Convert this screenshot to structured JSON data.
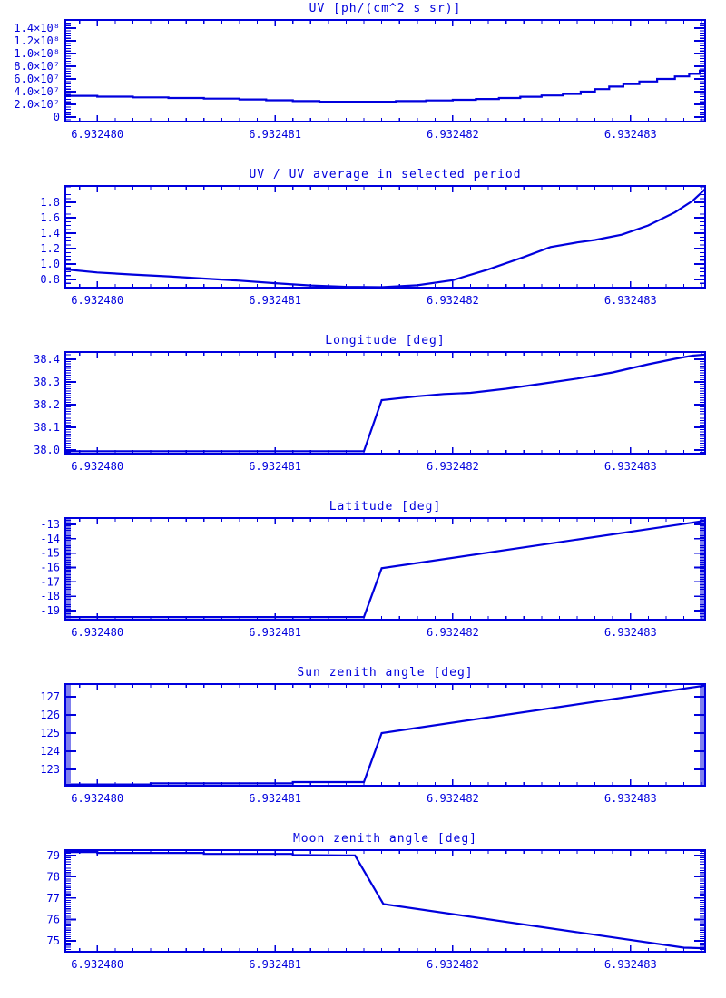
{
  "page": {
    "background": "#ffffff",
    "accent": "#0000dd"
  },
  "chart_data": [
    {
      "type": "line",
      "title": "UV [ph/(cm^2 s sr)]",
      "line_style": "steps",
      "xlabel": "",
      "ylabel": "",
      "x": {
        "lim": [
          6.93247982,
          6.93248342
        ],
        "minor_step": 1e-07,
        "ticks": [
          {
            "v": 6.93248,
            "label": "6.932480"
          },
          {
            "v": 6.932481,
            "label": "6.932481"
          },
          {
            "v": 6.932482,
            "label": "6.932482"
          },
          {
            "v": 6.932483,
            "label": "6.932483"
          }
        ]
      },
      "y": {
        "lim": [
          -7100000,
          152900000
        ],
        "minor_step": 4000000,
        "ticks": [
          {
            "v": 0,
            "label": "0"
          },
          {
            "v": 20000000,
            "label": "2.0×10⁷"
          },
          {
            "v": 40000000,
            "label": "4.0×10⁷"
          },
          {
            "v": 60000000,
            "label": "6.0×10⁷"
          },
          {
            "v": 80000000,
            "label": "8.0×10⁷"
          },
          {
            "v": 100000000,
            "label": "1.0×10⁸"
          },
          {
            "v": 120000000,
            "label": "1.2×10⁸"
          },
          {
            "v": 140000000,
            "label": "1.4×10⁸"
          }
        ]
      },
      "points": [
        [
          6.93247982,
          33500000
        ],
        [
          6.93248,
          32200000
        ],
        [
          6.9324802,
          31000000
        ],
        [
          6.9324804,
          30000000
        ],
        [
          6.9324806,
          29000000
        ],
        [
          6.9324808,
          27800000
        ],
        [
          6.93248095,
          26500000
        ],
        [
          6.9324811,
          25200000
        ],
        [
          6.93248125,
          24200000
        ],
        [
          6.93248168,
          25200000
        ],
        [
          6.93248185,
          26200000
        ],
        [
          6.932482,
          27200000
        ],
        [
          6.93248213,
          28500000
        ],
        [
          6.93248226,
          30000000
        ],
        [
          6.93248238,
          32000000
        ],
        [
          6.9324825,
          34000000
        ],
        [
          6.93248262,
          36500000
        ],
        [
          6.93248272,
          40000000
        ],
        [
          6.9324828,
          44000000
        ],
        [
          6.93248288,
          48000000
        ],
        [
          6.93248296,
          52000000
        ],
        [
          6.93248305,
          56000000
        ],
        [
          6.93248315,
          60000000
        ],
        [
          6.93248325,
          64000000
        ],
        [
          6.93248333,
          68000000
        ],
        [
          6.93248339,
          73000000
        ],
        [
          6.93248342,
          73000000
        ]
      ]
    },
    {
      "type": "line",
      "title": "UV / UV average in selected period",
      "line_style": "line",
      "xlabel": "",
      "ylabel": "",
      "x": {
        "lim": [
          6.93247982,
          6.93248342
        ],
        "minor_step": 1e-07,
        "ticks": [
          {
            "v": 6.93248,
            "label": "6.932480"
          },
          {
            "v": 6.932481,
            "label": "6.932481"
          },
          {
            "v": 6.932482,
            "label": "6.932482"
          },
          {
            "v": 6.932483,
            "label": "6.932483"
          }
        ]
      },
      "y": {
        "lim": [
          0.694,
          2.012
        ],
        "minor_step": 0.05,
        "ticks": [
          {
            "v": 0.8,
            "label": "0.8"
          },
          {
            "v": 1.0,
            "label": "1.0"
          },
          {
            "v": 1.2,
            "label": "1.2"
          },
          {
            "v": 1.4,
            "label": "1.4"
          },
          {
            "v": 1.6,
            "label": "1.6"
          },
          {
            "v": 1.8,
            "label": "1.8"
          }
        ]
      },
      "points": [
        [
          6.93247982,
          0.93
        ],
        [
          6.93248,
          0.89
        ],
        [
          6.9324802,
          0.863
        ],
        [
          6.9324804,
          0.84
        ],
        [
          6.9324806,
          0.812
        ],
        [
          6.9324808,
          0.785
        ],
        [
          6.932481,
          0.752
        ],
        [
          6.9324812,
          0.722
        ],
        [
          6.9324814,
          0.705
        ],
        [
          6.9324816,
          0.7
        ],
        [
          6.9324818,
          0.725
        ],
        [
          6.932482,
          0.79
        ],
        [
          6.9324822,
          0.93
        ],
        [
          6.9324824,
          1.09
        ],
        [
          6.93248255,
          1.22
        ],
        [
          6.9324827,
          1.28
        ],
        [
          6.9324828,
          1.312
        ],
        [
          6.93248295,
          1.38
        ],
        [
          6.9324831,
          1.5
        ],
        [
          6.93248325,
          1.67
        ],
        [
          6.93248335,
          1.82
        ],
        [
          6.93248342,
          1.97
        ]
      ]
    },
    {
      "type": "line",
      "title": "Longitude [deg]",
      "line_style": "line",
      "xlabel": "",
      "ylabel": "",
      "x": {
        "lim": [
          6.93247982,
          6.93248342
        ],
        "minor_step": 1e-07,
        "ticks": [
          {
            "v": 6.93248,
            "label": "6.932480"
          },
          {
            "v": 6.932481,
            "label": "6.932481"
          },
          {
            "v": 6.932482,
            "label": "6.932482"
          },
          {
            "v": 6.932483,
            "label": "6.932483"
          }
        ]
      },
      "y": {
        "lim": [
          37.984,
          38.432
        ],
        "minor_step": 0.01,
        "ticks": [
          {
            "v": 38.0,
            "label": "38.0"
          },
          {
            "v": 38.1,
            "label": "38.1"
          },
          {
            "v": 38.2,
            "label": "38.2"
          },
          {
            "v": 38.3,
            "label": "38.3"
          },
          {
            "v": 38.4,
            "label": "38.4"
          }
        ]
      },
      "points": [
        [
          6.93247982,
          37.995
        ],
        [
          6.9324815,
          37.995
        ],
        [
          6.9324816,
          38.22
        ],
        [
          6.9324818,
          38.237
        ],
        [
          6.93248195,
          38.247
        ],
        [
          6.9324821,
          38.252
        ],
        [
          6.9324823,
          38.27
        ],
        [
          6.9324825,
          38.292
        ],
        [
          6.9324827,
          38.315
        ],
        [
          6.9324829,
          38.342
        ],
        [
          6.9324831,
          38.378
        ],
        [
          6.93248325,
          38.402
        ],
        [
          6.93248335,
          38.416
        ],
        [
          6.93248342,
          38.421
        ]
      ]
    },
    {
      "type": "line",
      "title": "Latitude [deg]",
      "line_style": "line",
      "xlabel": "",
      "ylabel": "",
      "x": {
        "lim": [
          6.93247982,
          6.93248342
        ],
        "minor_step": 1e-07,
        "ticks": [
          {
            "v": 6.93248,
            "label": "6.932480"
          },
          {
            "v": 6.932481,
            "label": "6.932481"
          },
          {
            "v": 6.932482,
            "label": "6.932482"
          },
          {
            "v": 6.932483,
            "label": "6.932483"
          }
        ]
      },
      "y": {
        "lim": [
          -19.63,
          -12.56
        ],
        "minor_step": 0.1,
        "ticks": [
          {
            "v": -19,
            "label": "-19"
          },
          {
            "v": -18,
            "label": "-18"
          },
          {
            "v": -17,
            "label": "-17"
          },
          {
            "v": -16,
            "label": "-16"
          },
          {
            "v": -15,
            "label": "-15"
          },
          {
            "v": -14,
            "label": "-14"
          },
          {
            "v": -13,
            "label": "-13"
          }
        ]
      },
      "points": [
        [
          6.93247982,
          -19.45
        ],
        [
          6.9324815,
          -19.45
        ],
        [
          6.9324816,
          -16.05
        ],
        [
          6.93248342,
          -12.75
        ]
      ]
    },
    {
      "type": "line",
      "title": "Sun zenith angle [deg]",
      "line_style": "line",
      "xlabel": "",
      "ylabel": "",
      "x": {
        "lim": [
          6.93247982,
          6.93248342
        ],
        "minor_step": 1e-07,
        "ticks": [
          {
            "v": 6.93248,
            "label": "6.932480"
          },
          {
            "v": 6.932481,
            "label": "6.932481"
          },
          {
            "v": 6.932482,
            "label": "6.932482"
          },
          {
            "v": 6.932483,
            "label": "6.932483"
          }
        ]
      },
      "y": {
        "lim": [
          122.1,
          127.7
        ],
        "minor_step": 0.1,
        "ticks": [
          {
            "v": 123,
            "label": "123"
          },
          {
            "v": 124,
            "label": "124"
          },
          {
            "v": 125,
            "label": "125"
          },
          {
            "v": 126,
            "label": "126"
          },
          {
            "v": 127,
            "label": "127"
          }
        ]
      },
      "points": [
        [
          6.93247982,
          122.17
        ],
        [
          6.9324803,
          122.17
        ],
        [
          6.9324803,
          122.23
        ],
        [
          6.9324811,
          122.23
        ],
        [
          6.9324811,
          122.3
        ],
        [
          6.9324815,
          122.3
        ],
        [
          6.9324816,
          125.0
        ],
        [
          6.93248342,
          127.62
        ]
      ]
    },
    {
      "type": "line",
      "title": "Moon zenith angle [deg]",
      "line_style": "line",
      "xlabel": "",
      "ylabel": "",
      "x": {
        "lim": [
          6.93247982,
          6.93248342
        ],
        "minor_step": 1e-07,
        "ticks": [
          {
            "v": 6.93248,
            "label": "6.932480"
          },
          {
            "v": 6.932481,
            "label": "6.932481"
          },
          {
            "v": 6.932482,
            "label": "6.932482"
          },
          {
            "v": 6.932483,
            "label": "6.932483"
          }
        ]
      },
      "y": {
        "lim": [
          74.49,
          79.25
        ],
        "minor_step": 0.1,
        "ticks": [
          {
            "v": 75,
            "label": "75"
          },
          {
            "v": 76,
            "label": "76"
          },
          {
            "v": 77,
            "label": "77"
          },
          {
            "v": 78,
            "label": "78"
          },
          {
            "v": 79,
            "label": "79"
          }
        ]
      },
      "points": [
        [
          6.93247982,
          79.16
        ],
        [
          6.93248,
          79.16
        ],
        [
          6.93248,
          79.12
        ],
        [
          6.9324806,
          79.12
        ],
        [
          6.9324806,
          79.07
        ],
        [
          6.9324811,
          79.07
        ],
        [
          6.9324811,
          79.02
        ],
        [
          6.93248145,
          79.0
        ],
        [
          6.93248161,
          76.72
        ],
        [
          6.9324833,
          74.68
        ],
        [
          6.93248342,
          74.65
        ]
      ]
    }
  ]
}
